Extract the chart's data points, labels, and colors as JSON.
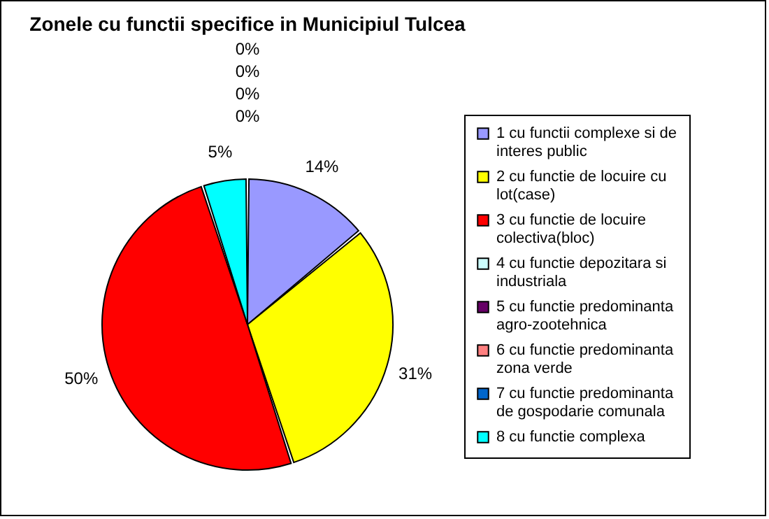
{
  "chart_data": {
    "type": "pie",
    "title": "Zonele cu functii specifice in Municipiul Tulcea",
    "categories": [
      "1 cu functii complexe si de interes public",
      "2 cu functie de locuire cu lot(case)",
      "3 cu functie de locuire colectiva(bloc)",
      "4 cu functie depozitara si industriala",
      "5 cu functie predominanta agro-zootehnica",
      "6 cu functie predominanta zona verde",
      "7 cu functie predominanta de gospodarie comunala",
      "8 cu functie complexa"
    ],
    "values": [
      14,
      31,
      50,
      0,
      0,
      0,
      0,
      5
    ],
    "value_labels": [
      "14%",
      "31%",
      "50%",
      "0%",
      "0%",
      "0%",
      "0%",
      "5%"
    ],
    "colors": [
      "#9999ff",
      "#ffff00",
      "#ff0000",
      "#ccffff",
      "#660066",
      "#ff8080",
      "#0066cc",
      "#00ffff"
    ],
    "legend": "right"
  }
}
